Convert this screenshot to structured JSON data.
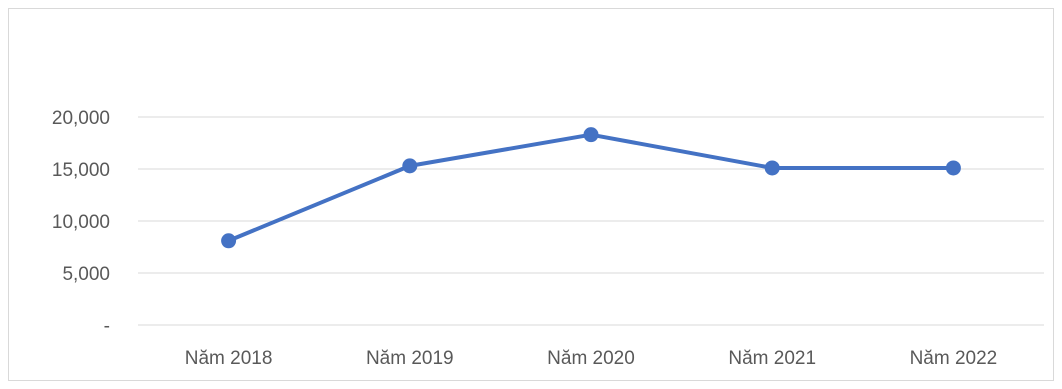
{
  "chart_data": {
    "type": "line",
    "title": "",
    "xlabel": "",
    "ylabel": "",
    "categories": [
      "Năm 2018",
      "Năm 2019",
      "Năm 2020",
      "Năm 2021",
      "Năm 2022"
    ],
    "series": [
      {
        "values": [
          8100,
          15300,
          18300,
          15100,
          15100
        ]
      }
    ],
    "ylim": [
      0,
      20000
    ],
    "yticks": [
      {
        "value": 0,
        "label": "-"
      },
      {
        "value": 5000,
        "label": "5,000"
      },
      {
        "value": 10000,
        "label": "10,000"
      },
      {
        "value": 15000,
        "label": "15,000"
      },
      {
        "value": 20000,
        "label": "20,000"
      }
    ],
    "grid": true,
    "legend": "none",
    "colors": {
      "line": "#4472c4",
      "grid": "#d9d9d9",
      "text": "#595959"
    }
  }
}
